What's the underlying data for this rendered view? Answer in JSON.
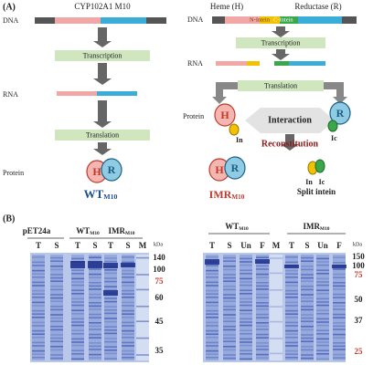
{
  "panel_a": {
    "label": "(A)",
    "left": {
      "title": "CYP102A1 M10",
      "dna": "DNA",
      "transcription": "Transcription",
      "rna": "RNA",
      "translation": "Translation",
      "protein": "Protein",
      "heme": "H",
      "reductase": "R",
      "product": "WT",
      "product_sub": "M10"
    },
    "right": {
      "heme_title": "Heme (H)",
      "reductase_title": "Reductase (R)",
      "n_intein": "N-Intein",
      "c_intein": "C-Intein",
      "dna": "DNA",
      "transcription": "Transcription",
      "rna": "RNA",
      "translation": "Translation",
      "protein": "Protein",
      "heme": "H",
      "reductase": "R",
      "n_tag": "In",
      "c_tag": "Ic",
      "interaction": "Interaction",
      "reconstitution": "Reconstitution",
      "product_heme": "H",
      "product_reductase": "R",
      "product": "IMR",
      "product_sub": "M10",
      "split_n": "In",
      "split_c": "Ic",
      "split_label": "Split intein"
    }
  },
  "panel_b": {
    "label": "(B)",
    "left_gel": {
      "groups": [
        {
          "name": "pET24a"
        },
        {
          "name": "WT",
          "sub": "M10"
        },
        {
          "name": "IMR",
          "sub": "M10"
        }
      ],
      "lanes": [
        "T",
        "S",
        "T",
        "S",
        "T",
        "S",
        "M"
      ],
      "unit": "kDa",
      "markers": [
        140,
        100,
        75,
        60,
        45,
        35
      ]
    },
    "right_gel": {
      "groups": [
        {
          "name": "WT",
          "sub": "M10"
        },
        {
          "name": "IMR",
          "sub": "M10"
        }
      ],
      "lanes": [
        "T",
        "S",
        "Un",
        "F",
        "M",
        "T",
        "S",
        "Un",
        "F"
      ],
      "unit": "kDa",
      "markers": [
        150,
        100,
        75,
        50,
        37,
        25
      ]
    }
  }
}
